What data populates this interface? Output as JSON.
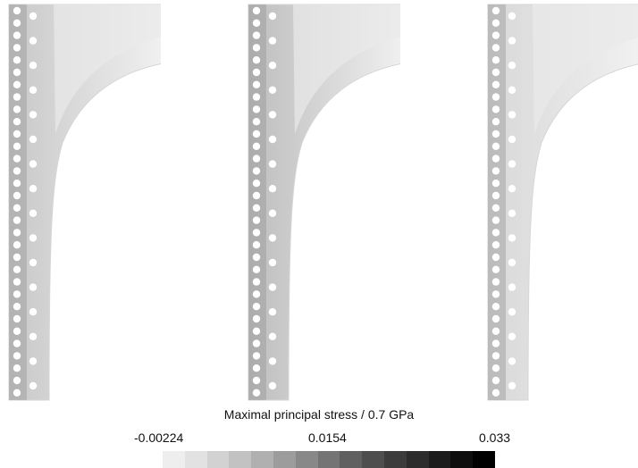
{
  "figure": {
    "colorbar": {
      "label": "Maximal principal stress / 0.7 GPa",
      "ticks": [
        "-0.00224",
        "0.0154",
        "0.033"
      ],
      "colors": [
        "#eeeeee",
        "#e2e2e2",
        "#d2d2d2",
        "#c2c2c2",
        "#b0b0b0",
        "#9c9c9c",
        "#888888",
        "#747474",
        "#606060",
        "#4e4e4e",
        "#3c3c3c",
        "#2c2c2c",
        "#1c1c1c",
        "#0e0e0e",
        "#000000"
      ]
    },
    "panels": [
      {
        "id": "panel-1",
        "stress_tone": "#c8c8c8"
      },
      {
        "id": "panel-2",
        "stress_tone": "#bdbdbd"
      },
      {
        "id": "panel-3",
        "stress_tone": "#d8d8d8"
      }
    ]
  }
}
